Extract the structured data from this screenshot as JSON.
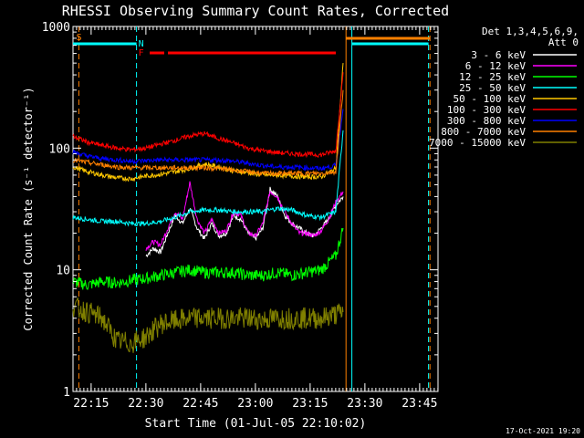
{
  "chart_data": {
    "type": "line",
    "title": "RHESSI Observing Summary Count Rates, Corrected",
    "xlabel": "Start Time (01-Jul-05 22:10:02)",
    "ylabel": "Corrected Count Rate (s⁻¹ detector⁻¹)",
    "yscale": "log",
    "ylim": [
      1,
      1000
    ],
    "xlim_minutes": [
      0,
      100
    ],
    "x_ticks": [
      {
        "label": "22:15",
        "min": 4.97
      },
      {
        "label": "22:30",
        "min": 19.97
      },
      {
        "label": "22:45",
        "min": 34.97
      },
      {
        "label": "23:00",
        "min": 49.97
      },
      {
        "label": "23:15",
        "min": 64.97
      },
      {
        "label": "23:30",
        "min": 79.97
      },
      {
        "label": "23:45",
        "min": 94.97
      }
    ],
    "y_ticks": [
      {
        "label": "1",
        "value": 1
      },
      {
        "label": "10",
        "value": 10
      },
      {
        "label": "100",
        "value": 100
      },
      {
        "label": "1000",
        "value": 1000
      }
    ],
    "legend_header": [
      "Det 1,3,4,5,6,9,",
      "Att 0"
    ],
    "series": [
      {
        "name": "3 - 6 keV",
        "color": "#ffffff",
        "x": [
          20,
          22,
          24,
          26,
          28,
          30,
          32,
          34,
          36,
          38,
          40,
          42,
          44,
          46,
          48,
          50,
          52,
          54,
          56,
          58,
          60,
          62,
          64,
          66,
          68,
          70,
          72,
          74
        ],
        "y": [
          13,
          15,
          14,
          20,
          28,
          24,
          32,
          22,
          18,
          24,
          19,
          20,
          28,
          26,
          20,
          18,
          22,
          46,
          40,
          28,
          24,
          22,
          20,
          19,
          22,
          26,
          34,
          40
        ]
      },
      {
        "name": "6 - 12 keV",
        "color": "#ff00ff",
        "x": [
          20,
          22,
          24,
          26,
          28,
          30,
          32,
          34,
          36,
          38,
          40,
          42,
          44,
          46,
          48,
          50,
          52,
          54,
          56,
          58,
          60,
          62,
          64,
          66,
          68,
          70,
          72,
          74
        ],
        "y": [
          15,
          17,
          16,
          22,
          30,
          26,
          52,
          26,
          20,
          26,
          20,
          21,
          30,
          28,
          20,
          19,
          24,
          44,
          40,
          30,
          24,
          20,
          20,
          19,
          21,
          26,
          36,
          44
        ]
      },
      {
        "name": "12 - 25 keV",
        "color": "#00ff00",
        "x": [
          0,
          4,
          8,
          12,
          16,
          20,
          24,
          28,
          32,
          36,
          40,
          44,
          48,
          52,
          56,
          60,
          64,
          68,
          72,
          74
        ],
        "y": [
          8,
          7.5,
          8,
          7.8,
          8.2,
          8.5,
          9,
          9.5,
          10,
          9.5,
          9.5,
          9.5,
          9,
          9,
          9.5,
          9,
          9.5,
          10,
          13,
          22
        ]
      },
      {
        "name": "25 - 50 keV",
        "color": "#00ffff",
        "x": [
          0,
          4,
          8,
          12,
          16,
          20,
          24,
          28,
          32,
          36,
          40,
          44,
          48,
          52,
          56,
          60,
          64,
          68,
          72,
          74
        ],
        "y": [
          27,
          26,
          25,
          25,
          24,
          24,
          25,
          27,
          30,
          31,
          31,
          30,
          30,
          30,
          32,
          31,
          28,
          27,
          30,
          140
        ]
      },
      {
        "name": "50 - 100 keV",
        "color": "#ffc800",
        "x": [
          0,
          4,
          8,
          12,
          16,
          20,
          24,
          28,
          32,
          36,
          40,
          44,
          48,
          52,
          56,
          60,
          64,
          68,
          72,
          74
        ],
        "y": [
          70,
          64,
          60,
          57,
          56,
          59,
          61,
          64,
          68,
          74,
          70,
          65,
          63,
          60,
          60,
          59,
          58,
          58,
          68,
          500
        ]
      },
      {
        "name": "100 - 300 keV",
        "color": "#ff0000",
        "x": [
          0,
          4,
          8,
          12,
          16,
          20,
          24,
          28,
          32,
          36,
          40,
          44,
          48,
          52,
          56,
          60,
          64,
          68,
          72,
          74
        ],
        "y": [
          125,
          112,
          105,
          100,
          97,
          100,
          108,
          116,
          126,
          132,
          120,
          110,
          100,
          95,
          92,
          90,
          89,
          88,
          95,
          420
        ]
      },
      {
        "name": "300 - 800 keV",
        "color": "#0000ff",
        "x": [
          0,
          4,
          8,
          12,
          16,
          20,
          24,
          28,
          32,
          36,
          40,
          44,
          48,
          52,
          56,
          60,
          64,
          68,
          72,
          74
        ],
        "y": [
          93,
          86,
          82,
          80,
          78,
          79,
          80,
          80,
          80,
          80,
          80,
          78,
          75,
          72,
          70,
          70,
          69,
          68,
          72,
          210
        ]
      },
      {
        "name": "800 - 7000 keV",
        "color": "#ff8000",
        "x": [
          0,
          4,
          8,
          12,
          16,
          20,
          24,
          28,
          32,
          36,
          40,
          44,
          48,
          52,
          56,
          60,
          64,
          68,
          72,
          74
        ],
        "y": [
          80,
          76,
          73,
          70,
          69,
          69,
          69,
          69,
          69,
          69,
          68,
          66,
          64,
          62,
          62,
          62,
          62,
          62,
          64,
          300
        ]
      },
      {
        "name": "7000 - 15000 keV",
        "color": "#808000",
        "x": [
          0,
          4,
          8,
          12,
          16,
          20,
          24,
          28,
          32,
          36,
          40,
          44,
          48,
          52,
          56,
          60,
          64,
          68,
          72,
          74
        ],
        "y": [
          5,
          4.5,
          4,
          2.6,
          2.5,
          2.8,
          3.6,
          3.8,
          4,
          4,
          4,
          4,
          4,
          3.9,
          4,
          4,
          4,
          4,
          4.3,
          4.5
        ]
      }
    ],
    "annotations": [
      {
        "label": "S",
        "color": "#ff8000",
        "min": 0.4
      },
      {
        "label": "N",
        "color": "#00ffff",
        "min": 17.4
      },
      {
        "label": "F",
        "color": "#ff0000",
        "min": 17.4
      }
    ],
    "lines": {
      "cyan_dashed_min": [
        17.4,
        97.4
      ],
      "cyan_solid_min": [
        76.4
      ],
      "orange_solid_min": [
        74.8
      ],
      "orange_dashed_min": [
        1.6,
        97.8
      ]
    },
    "flag_bars": [
      {
        "color": "#00ffff",
        "from_min": 0,
        "to_min": 17.4
      },
      {
        "color": "#00ffff",
        "from_min": 76.4,
        "to_min": 97.4
      },
      {
        "color": "#ff8000",
        "from_min": 74.8,
        "to_min": 97.8
      },
      {
        "color": "#ff0000",
        "from_min": 21,
        "to_min": 25
      },
      {
        "color": "#ff0000",
        "from_min": 26,
        "to_min": 72
      }
    ],
    "timestamp": "17-Oct-2021 19:20"
  }
}
